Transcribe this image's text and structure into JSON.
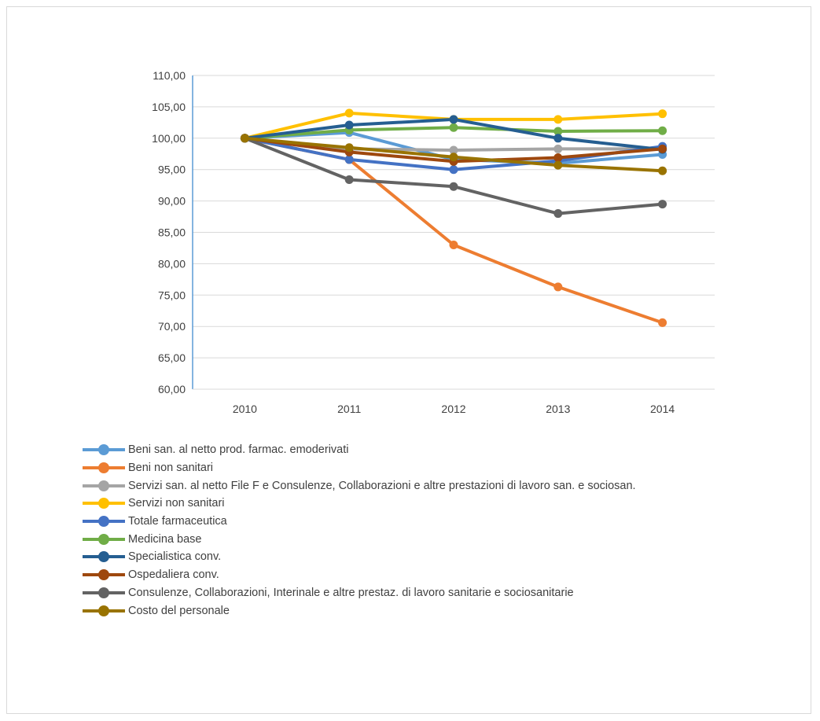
{
  "chart_data": {
    "type": "line",
    "categories": [
      "2010",
      "2011",
      "2012",
      "2013",
      "2014"
    ],
    "ylim": [
      60,
      110
    ],
    "yticks": [
      "60,00",
      "65,00",
      "70,00",
      "75,00",
      "80,00",
      "85,00",
      "90,00",
      "95,00",
      "100,00",
      "105,00",
      "110,00"
    ],
    "grid": true,
    "legend_position": "bottom-left",
    "series": [
      {
        "name": "Beni san. al netto prod. farmac. emoderivati",
        "color": "#5b9bd5",
        "values": [
          100,
          100.9,
          96.6,
          96.0,
          97.4
        ]
      },
      {
        "name": "Beni non sanitari",
        "color": "#ed7d31",
        "values": [
          100,
          96.6,
          83.0,
          76.3,
          70.6
        ]
      },
      {
        "name": "Servizi san. al netto File F  e Consulenze, Collaborazioni e altre prestazioni di lavoro san. e sociosan.",
        "color": "#a5a5a5",
        "values": [
          100,
          98.3,
          98.1,
          98.3,
          98.3
        ]
      },
      {
        "name": "Servizi non sanitari",
        "color": "#ffc000",
        "values": [
          100,
          104.0,
          103.0,
          103.0,
          103.9
        ]
      },
      {
        "name": "Totale farmaceutica",
        "color": "#4472c4",
        "values": [
          100,
          96.6,
          95.0,
          96.4,
          98.7
        ]
      },
      {
        "name": "Medicina base",
        "color": "#70ad47",
        "values": [
          100,
          101.3,
          101.7,
          101.1,
          101.2
        ]
      },
      {
        "name": "Specialistica conv.",
        "color": "#255e91",
        "values": [
          100,
          102.1,
          103.0,
          100.0,
          98.2
        ]
      },
      {
        "name": "Ospedaliera conv.",
        "color": "#9e480e",
        "values": [
          100,
          97.8,
          96.3,
          96.9,
          98.3
        ]
      },
      {
        "name": "Consulenze, Collaborazioni, Interinale e altre prestaz. di lavoro sanitarie e sociosanitarie",
        "color": "#636363",
        "values": [
          100,
          93.4,
          92.3,
          88.0,
          89.5
        ]
      },
      {
        "name": "Costo del personale",
        "color": "#997300",
        "values": [
          100,
          98.5,
          97.0,
          95.7,
          94.8
        ]
      }
    ]
  }
}
